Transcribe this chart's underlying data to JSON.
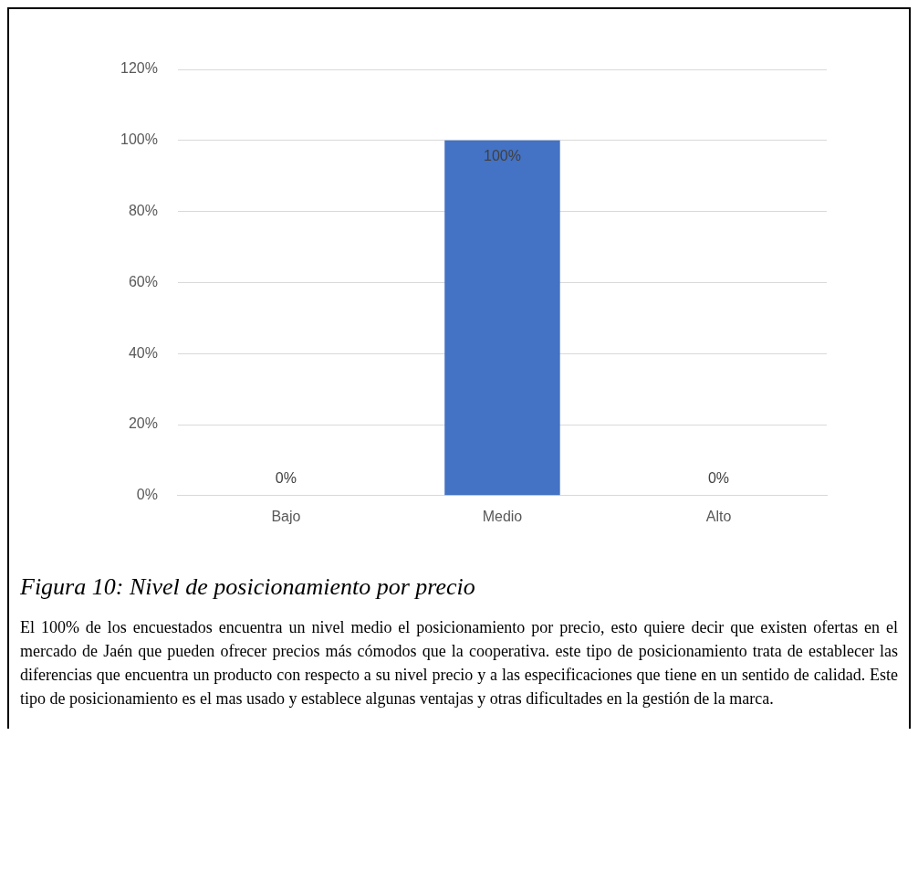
{
  "chart_data": {
    "type": "bar",
    "categories": [
      "Bajo",
      "Medio",
      "Alto"
    ],
    "values": [
      0,
      100,
      0
    ],
    "color": "#4472c4",
    "value_labels": [
      "0%",
      "100%",
      "0%"
    ],
    "ylim": [
      0,
      120
    ],
    "yticks": [
      {
        "value": 0,
        "label": "0%"
      },
      {
        "value": 20,
        "label": "20%"
      },
      {
        "value": 40,
        "label": "40%"
      },
      {
        "value": 60,
        "label": "60%"
      },
      {
        "value": 80,
        "label": "80%"
      },
      {
        "value": 100,
        "label": "100%"
      },
      {
        "value": 120,
        "label": "120%"
      }
    ],
    "grid": "y",
    "legend": false,
    "annotations": [
      "Figura 10: Nivel de posicionamiento por precio",
      "El 100% de los encuestados encuentra un nivel medio el posicionamiento por precio, esto quiere decir que existen ofertas en el mercado de Jaén que pueden ofrecer precios más cómodos que la cooperativa. este tipo de posicionamiento trata de establecer las diferencias que encuentra un producto con respecto a su nivel precio y a las especificaciones que tiene en un sentido de calidad. Este tipo de posicionamiento es el mas usado y establece algunas ventajas y otras dificultades en la gestión de la marca."
    ]
  }
}
